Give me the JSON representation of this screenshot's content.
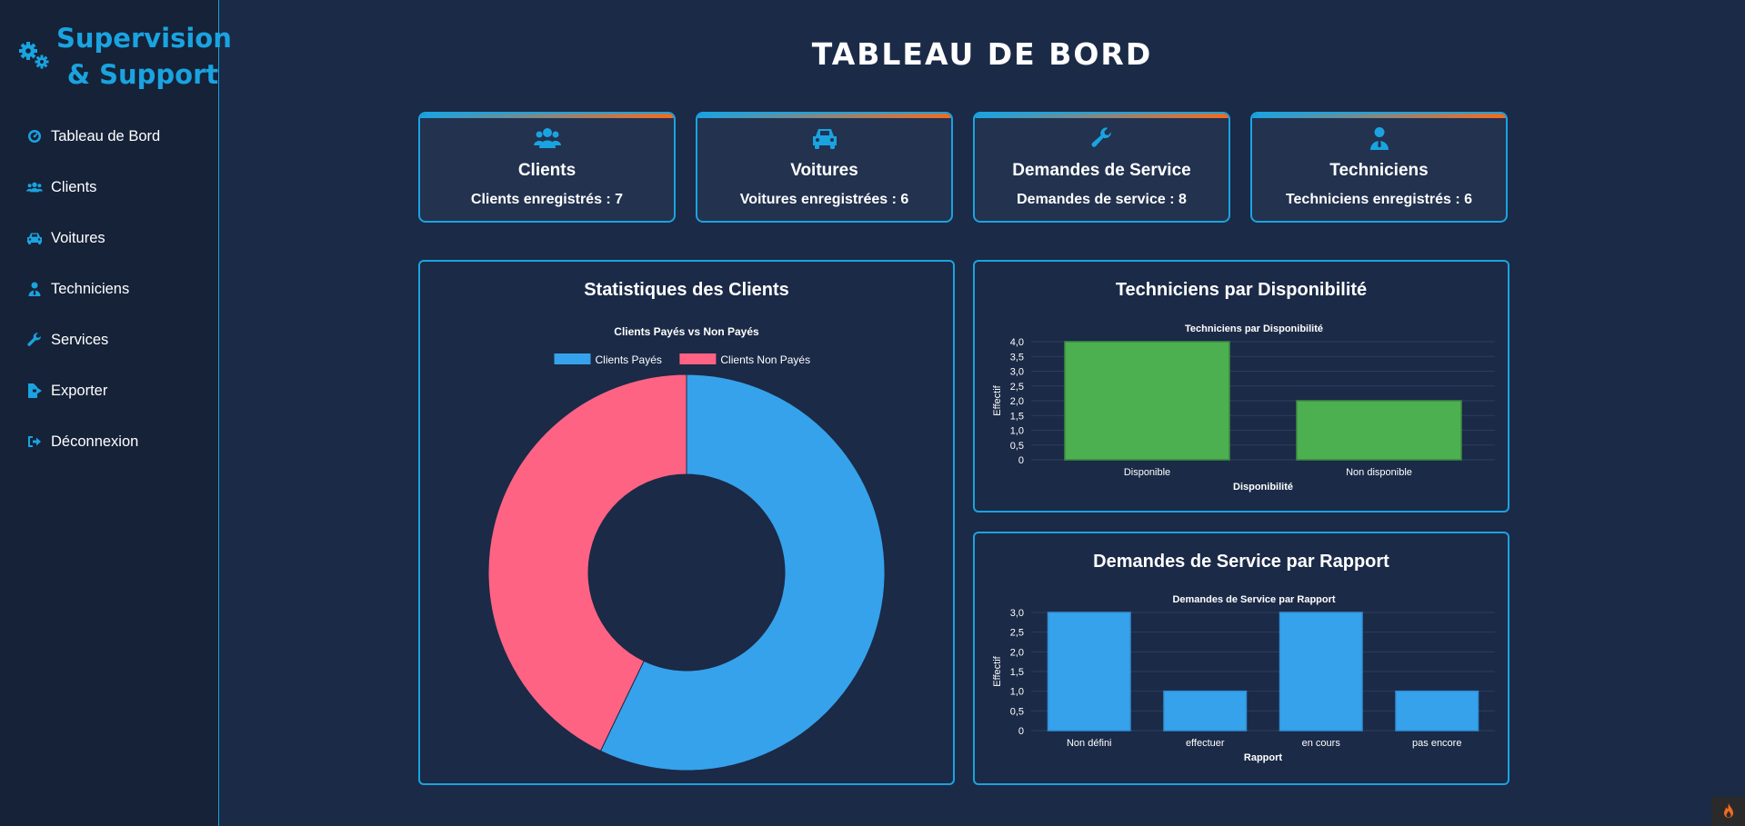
{
  "sidebar": {
    "brand": "Supervision & Support",
    "items": [
      {
        "label": "Tableau de Bord",
        "icon": "gauge-icon"
      },
      {
        "label": "Clients",
        "icon": "users-icon"
      },
      {
        "label": "Voitures",
        "icon": "car-icon"
      },
      {
        "label": "Techniciens",
        "icon": "user-tie-icon"
      },
      {
        "label": "Services",
        "icon": "wrench-icon"
      },
      {
        "label": "Exporter",
        "icon": "file-export-icon"
      },
      {
        "label": "Déconnexion",
        "icon": "sign-out-icon"
      }
    ]
  },
  "page": {
    "title": "TABLEAU DE BORD"
  },
  "cards": [
    {
      "title": "Clients",
      "value": "Clients enregistrés : 7",
      "icon": "users-icon"
    },
    {
      "title": "Voitures",
      "value": "Voitures enregistrées : 6",
      "icon": "car-icon"
    },
    {
      "title": "Demandes de Service",
      "value": "Demandes de service : 8",
      "icon": "wrench-icon"
    },
    {
      "title": "Techniciens",
      "value": "Techniciens enregistrés : 6",
      "icon": "user-tie-icon"
    }
  ],
  "panels": {
    "clients": {
      "title": "Statistiques des Clients"
    },
    "techs": {
      "title": "Techniciens par Disponibilité"
    },
    "services": {
      "title": "Demandes de Service par Rapport"
    }
  },
  "colors": {
    "accent": "#1aa3e0",
    "accent2": "#f26b21",
    "background": "#1b2a47",
    "green": "#4caf50",
    "blue": "#36a2eb",
    "pink": "#ff6384"
  },
  "chart_data": [
    {
      "type": "pie",
      "title": "Clients Payés vs Non Payés",
      "categories": [
        "Clients Payés",
        "Clients Non Payés"
      ],
      "values": [
        4,
        3
      ],
      "colors": [
        "#36a2eb",
        "#ff6384"
      ],
      "legend": "top"
    },
    {
      "type": "bar",
      "title": "Techniciens par Disponibilité",
      "categories": [
        "Disponible",
        "Non disponible"
      ],
      "values": [
        4,
        2
      ],
      "xlabel": "Disponibilité",
      "ylabel": "Effectif",
      "ylim": [
        0,
        4
      ],
      "yticks": [
        "0",
        "0,5",
        "1,0",
        "1,5",
        "2,0",
        "2,5",
        "3,0",
        "3,5",
        "4,0"
      ],
      "color": "#4caf50",
      "grid": true
    },
    {
      "type": "bar",
      "title": "Demandes de Service par Rapport",
      "categories": [
        "Non défini",
        "effectuer",
        "en cours",
        "pas encore"
      ],
      "values": [
        3,
        1,
        3,
        1
      ],
      "xlabel": "Rapport",
      "ylabel": "Effectif",
      "ylim": [
        0,
        3
      ],
      "yticks": [
        "0",
        "0,5",
        "1,0",
        "1,5",
        "2,0",
        "2,5",
        "3,0"
      ],
      "color": "#36a2eb",
      "grid": true
    }
  ]
}
